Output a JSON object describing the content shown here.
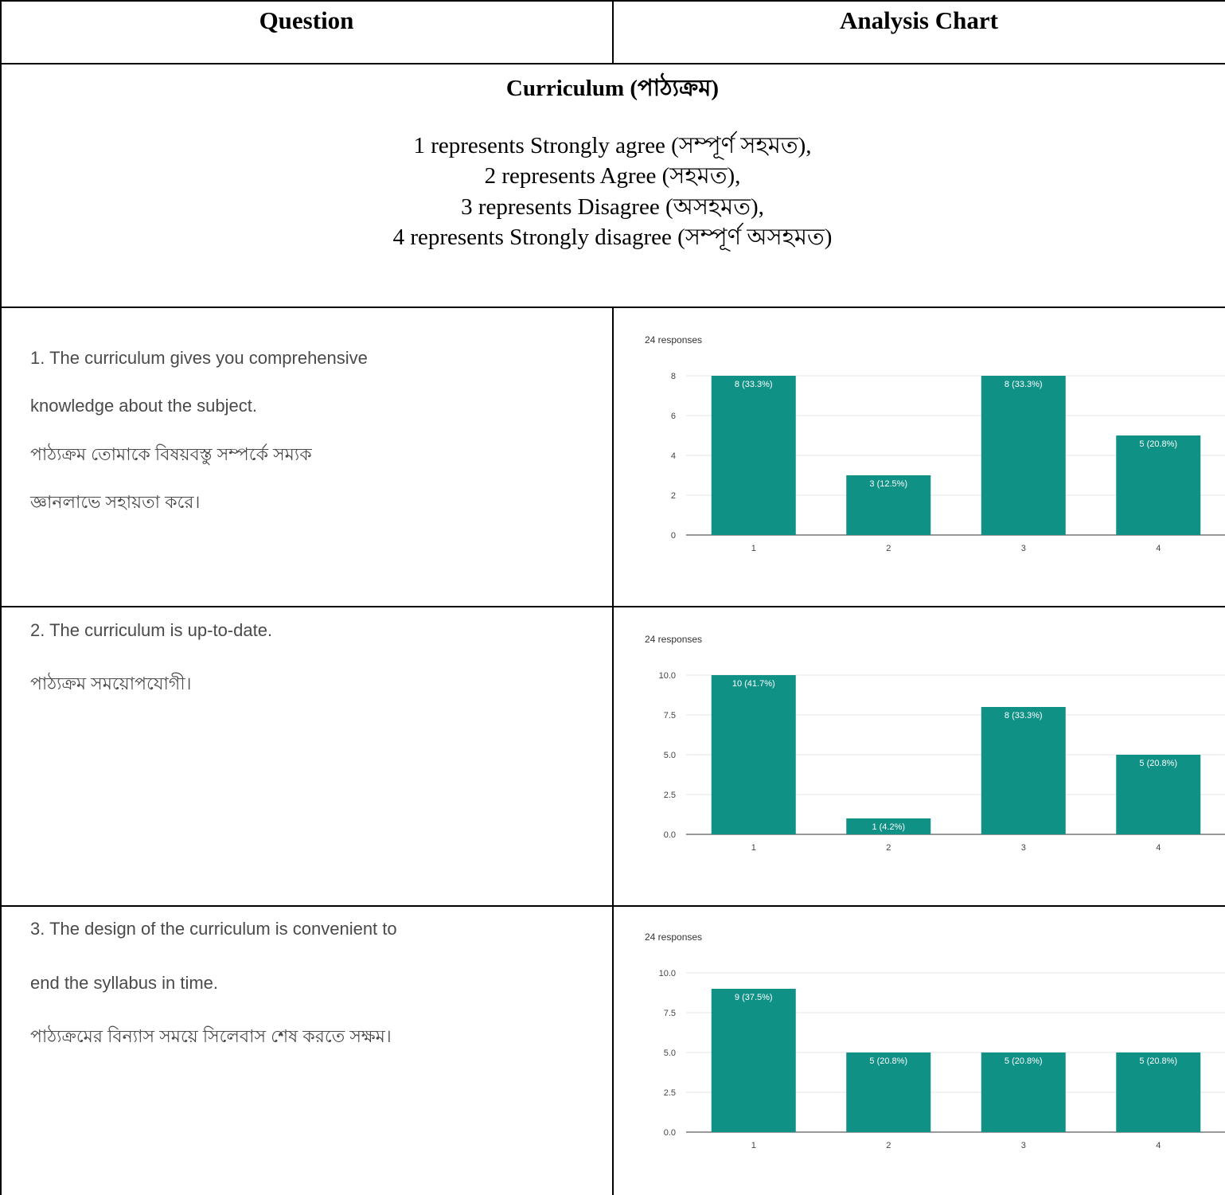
{
  "header": {
    "question": "Question",
    "analysis": "Analysis Chart"
  },
  "section": {
    "title": "Curriculum (পাঠ্যক্রম)",
    "legend": [
      "1 represents Strongly agree (সম্পূর্ণ সহমত),",
      "2 represents Agree (সহমত),",
      "3 represents Disagree (অসহমত),",
      "4 represents Strongly disagree (সম্পূর্ণ অসহমত)"
    ]
  },
  "questions": [
    {
      "lines": [
        "1. The curriculum gives you comprehensive",
        "knowledge about the subject.",
        "পাঠ্যক্রম তোমাকে বিষয়বস্তু সম্পর্কে সম্যক",
        "জ্ঞানলাভে সহায়তা করে।"
      ]
    },
    {
      "lines": [
        "2. The curriculum is up-to-date.",
        "পাঠ্যক্রম সময়োপযোগী।"
      ]
    },
    {
      "lines": [
        "3. The design of the curriculum is convenient to",
        "end the syllabus in time.",
        "পাঠ্যক্রমের বিন্যাস সময়ে সিলেবাস শেষ করতে সক্ষম।"
      ]
    }
  ],
  "bar_color": "#0f9186",
  "chart_data": [
    {
      "type": "bar",
      "responses_label": "24 responses",
      "categories": [
        "1",
        "2",
        "3",
        "4"
      ],
      "values": [
        8,
        3,
        8,
        5
      ],
      "data_labels": [
        "8 (33.3%)",
        "3 (12.5%)",
        "8 (33.3%)",
        "5 (20.8%)"
      ],
      "yticks": [
        "0",
        "2",
        "4",
        "6",
        "8"
      ],
      "ylim": [
        0,
        8
      ]
    },
    {
      "type": "bar",
      "responses_label": "24 responses",
      "categories": [
        "1",
        "2",
        "3",
        "4"
      ],
      "values": [
        10,
        1,
        8,
        5
      ],
      "data_labels": [
        "10 (41.7%)",
        "1 (4.2%)",
        "8 (33.3%)",
        "5 (20.8%)"
      ],
      "yticks": [
        "0.0",
        "2.5",
        "5.0",
        "7.5",
        "10.0"
      ],
      "ylim": [
        0,
        10
      ]
    },
    {
      "type": "bar",
      "responses_label": "24 responses",
      "categories": [
        "1",
        "2",
        "3",
        "4"
      ],
      "values": [
        9,
        5,
        5,
        5
      ],
      "data_labels": [
        "9 (37.5%)",
        "5 (20.8%)",
        "5 (20.8%)",
        "5 (20.8%)"
      ],
      "yticks": [
        "0.0",
        "2.5",
        "5.0",
        "7.5",
        "10.0"
      ],
      "ylim": [
        0,
        10
      ]
    }
  ]
}
